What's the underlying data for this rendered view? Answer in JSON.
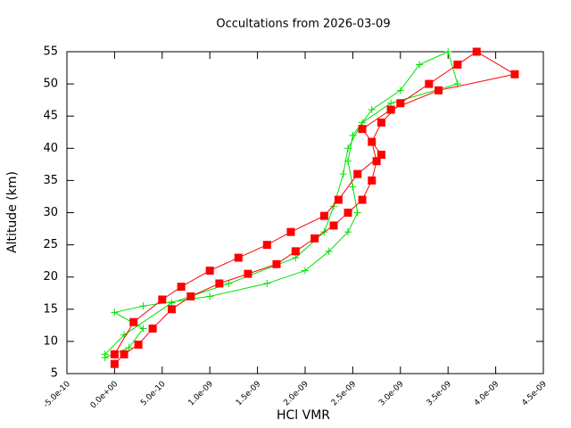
{
  "chart_data": {
    "type": "line",
    "title": "Occultations from 2026-03-09",
    "x_label": "HCl VMR",
    "y_label": "Altitude (km)",
    "xlim": [
      -5e-10,
      4.5e-09
    ],
    "ylim": [
      5,
      55
    ],
    "xticks": [
      {
        "value": -5e-10,
        "label": "-5.0e-10"
      },
      {
        "value": 0,
        "label": "0.0e+00"
      },
      {
        "value": 5e-10,
        "label": "5.0e-10"
      },
      {
        "value": 1e-09,
        "label": "1.0e-09"
      },
      {
        "value": 1.5e-09,
        "label": "1.5e-09"
      },
      {
        "value": 2e-09,
        "label": "2.0e-09"
      },
      {
        "value": 2.5e-09,
        "label": "2.5e-09"
      },
      {
        "value": 3e-09,
        "label": "3.0e-09"
      },
      {
        "value": 3.5e-09,
        "label": "3.5e-09"
      },
      {
        "value": 4e-09,
        "label": "4.0e-09"
      },
      {
        "value": 4.5e-09,
        "label": "4.5e-09"
      }
    ],
    "yticks": [
      5,
      10,
      15,
      20,
      25,
      30,
      35,
      40,
      45,
      50,
      55
    ],
    "series": [
      {
        "color": "#00e000",
        "marker": "plus",
        "x": [
          -1e-10,
          1.5e-10,
          3e-10,
          0,
          3e-10,
          1e-09,
          1.6e-09,
          2e-09,
          2.25e-09,
          2.45e-09,
          2.55e-09,
          2.5e-09,
          2.45e-09,
          2.5e-09,
          2.7e-09,
          3e-09,
          3.2e-09,
          3.5e-09,
          3.6e-09,
          2.9e-09,
          2.6e-09,
          2.45e-09,
          2.4e-09,
          2.3e-09,
          2.2e-09,
          1.9e-09,
          1.2e-09,
          6e-10,
          1e-10,
          -1e-10
        ],
        "values": [
          7.5,
          9,
          12,
          14.5,
          15.5,
          17,
          19,
          21,
          24,
          27,
          30,
          34,
          38,
          42,
          46,
          49,
          53,
          55,
          50,
          47,
          44,
          40,
          36,
          31,
          27,
          23,
          19,
          16,
          11,
          8
        ]
      },
      {
        "color": "#ff0000",
        "marker": "square",
        "x": [
          0,
          1e-10,
          2.5e-10,
          4e-10,
          6e-10,
          8e-10,
          1.1e-09,
          1.4e-09,
          1.7e-09,
          1.9e-09,
          2.1e-09,
          2.3e-09,
          2.45e-09,
          2.6e-09,
          2.7e-09,
          2.75e-09,
          2.7e-09,
          2.8e-09,
          3e-09,
          3.3e-09,
          3.6e-09,
          3.8e-09,
          4.2e-09,
          3.4e-09,
          2.9e-09,
          2.6e-09,
          2.8e-09,
          2.55e-09,
          2.35e-09,
          2.2e-09,
          1.85e-09,
          1.6e-09,
          1.3e-09,
          1e-09,
          7e-10,
          5e-10,
          2e-10,
          0
        ],
        "values": [
          6.5,
          8,
          9.5,
          12,
          15,
          17,
          19,
          20.5,
          22,
          24,
          26,
          28,
          30,
          32,
          35,
          38,
          41,
          44,
          47,
          50,
          53,
          55,
          51.5,
          49,
          46,
          43,
          39,
          36,
          32,
          29.5,
          27,
          25,
          23,
          21,
          18.5,
          16.5,
          13,
          8
        ]
      }
    ]
  }
}
